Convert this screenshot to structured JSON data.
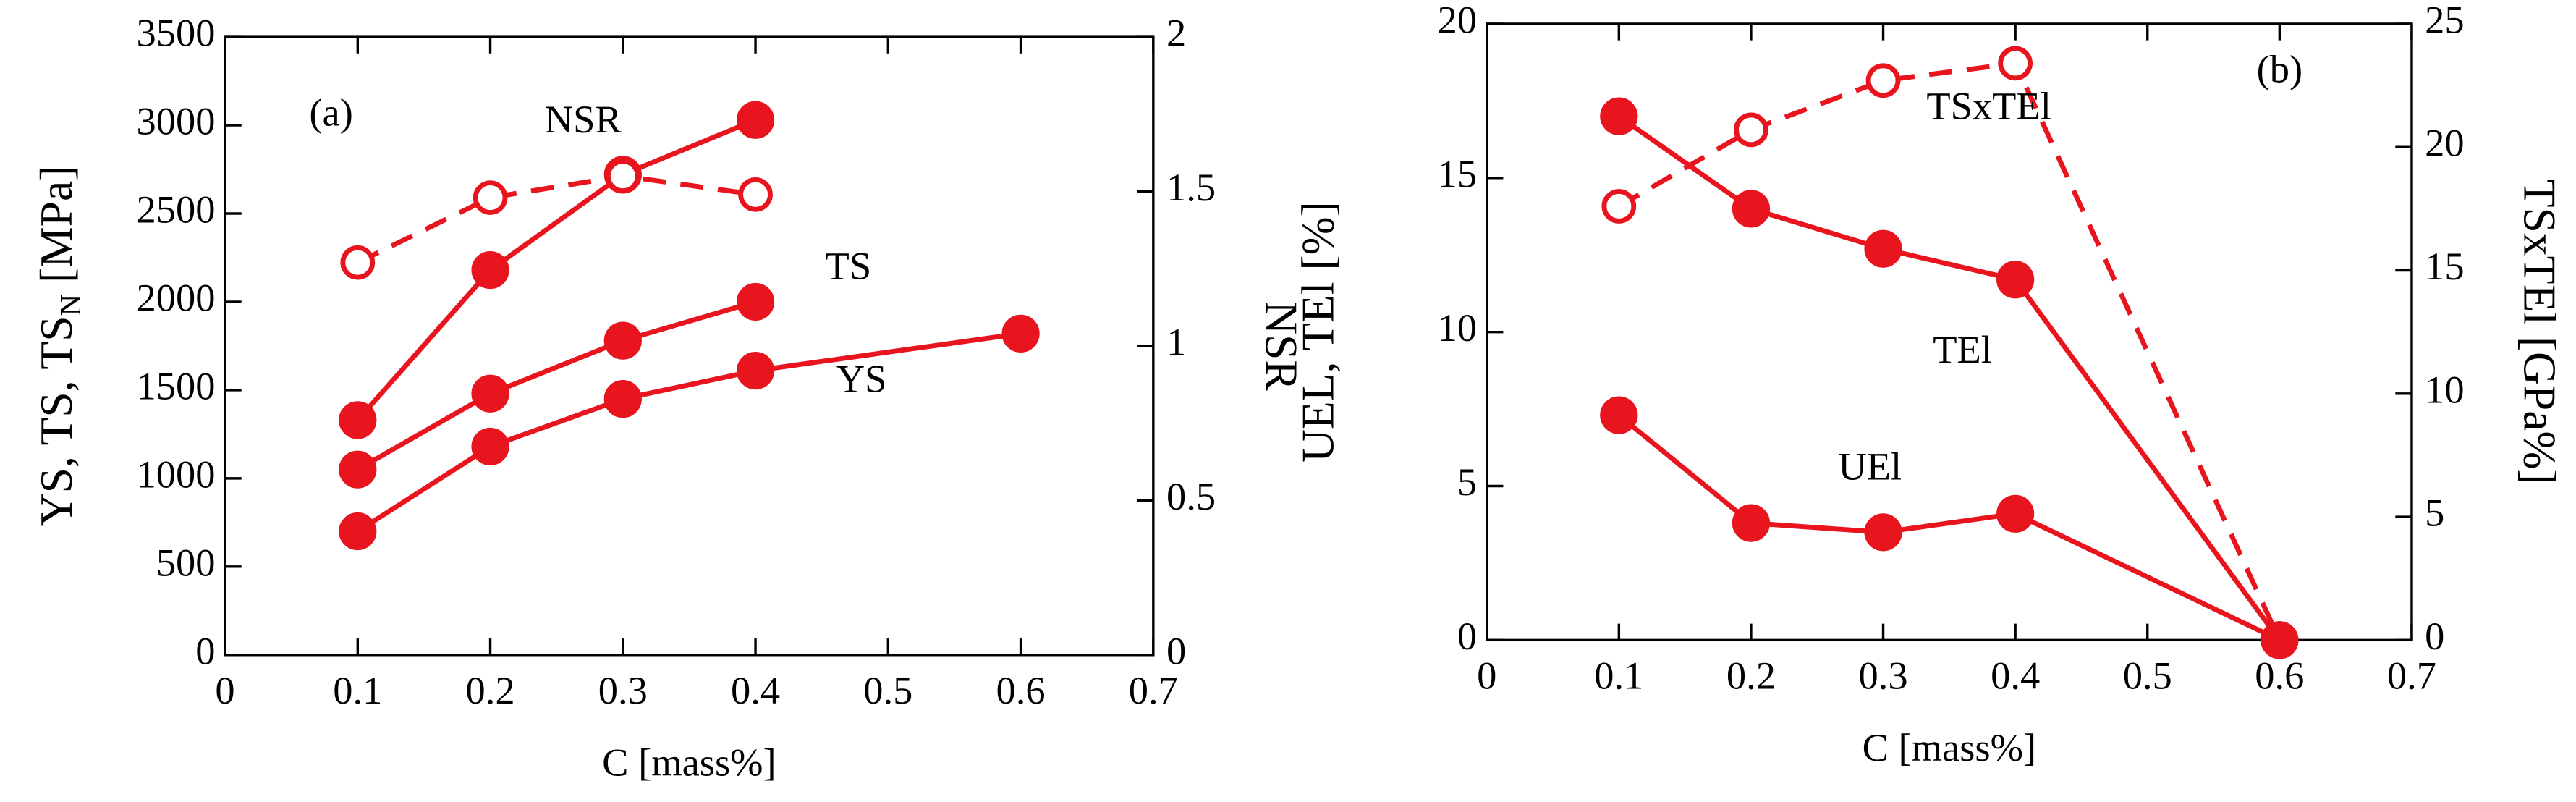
{
  "chart_data": [
    {
      "type": "line",
      "panel_label": "(a)",
      "xlabel": "C [mass%]",
      "ylabel": "YS, TS, TS",
      "ylabel_sub": "N",
      "ylabel_unit": "[MPa]",
      "y2label": "NSR",
      "xlim": [
        0,
        0.7
      ],
      "xticks": [
        0,
        0.1,
        0.2,
        0.3,
        0.4,
        0.5,
        0.6,
        0.7
      ],
      "ylim": [
        0,
        3500
      ],
      "yticks": [
        0,
        500,
        1000,
        1500,
        2000,
        2500,
        3000,
        3500
      ],
      "y2lim": [
        0,
        2
      ],
      "y2ticks": [
        0,
        0.5,
        1,
        1.5,
        2
      ],
      "series": [
        {
          "name": "YS",
          "color": "#e8141e",
          "x": [
            0.1,
            0.2,
            0.3,
            0.4,
            0.6
          ],
          "values": [
            700,
            1180,
            1450,
            1610,
            1820
          ]
        },
        {
          "name": "TS",
          "color": "#e8141e",
          "x": [
            0.1,
            0.2,
            0.3,
            0.4
          ],
          "values": [
            1050,
            1480,
            1780,
            2000
          ]
        },
        {
          "color": "#e8141e",
          "x": [
            0.1,
            0.2,
            0.3,
            0.4
          ],
          "values": [
            1330,
            2180,
            2720,
            3030
          ]
        },
        {
          "name": "NSR",
          "color": "#e8141e",
          "axis": "y2",
          "dashed": true,
          "open_markers": true,
          "x": [
            0.1,
            0.2,
            0.3,
            0.4
          ],
          "values": [
            1.27,
            1.48,
            1.55,
            1.49
          ]
        }
      ]
    },
    {
      "type": "line",
      "panel_label": "(b)",
      "xlabel": "C [mass%]",
      "ylabel": "UEL, TEl [%]",
      "y2label": "TSxTEl [GPa%]",
      "xlim": [
        0,
        0.7
      ],
      "xticks": [
        0,
        0.1,
        0.2,
        0.3,
        0.4,
        0.5,
        0.6,
        0.7
      ],
      "ylim": [
        0,
        20
      ],
      "yticks": [
        0,
        5,
        10,
        15,
        20
      ],
      "y2lim": [
        0,
        25
      ],
      "y2ticks": [
        0,
        5,
        10,
        15,
        20,
        25
      ],
      "series": [
        {
          "name": "TEl",
          "color": "#e8141e",
          "x": [
            0.1,
            0.2,
            0.3,
            0.4,
            0.6
          ],
          "values": [
            17,
            14,
            12.7,
            11.7,
            0
          ]
        },
        {
          "name": "UEl",
          "color": "#e8141e",
          "x": [
            0.1,
            0.2,
            0.3,
            0.4,
            0.6
          ],
          "values": [
            7.3,
            3.8,
            3.5,
            4.1,
            0
          ]
        },
        {
          "name": "TSxTEl",
          "color": "#e8141e",
          "axis": "y2",
          "dashed": true,
          "open_markers": true,
          "x": [
            0.1,
            0.2,
            0.3,
            0.4,
            0.6
          ],
          "values": [
            17.6,
            20.7,
            22.7,
            23.4,
            0
          ]
        }
      ]
    }
  ]
}
